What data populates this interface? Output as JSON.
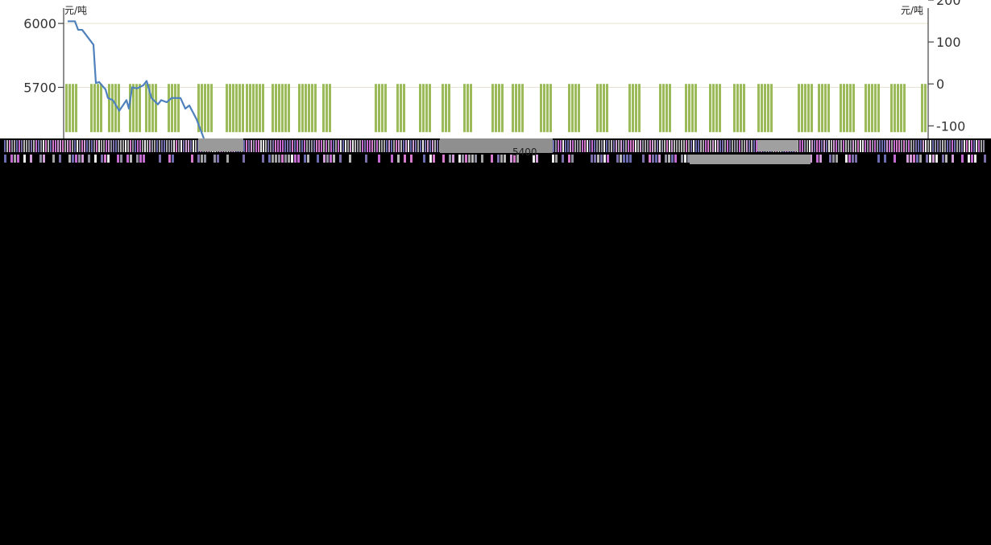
{
  "chart_data": {
    "type": "bar+line",
    "left_axis": {
      "unit": "元/吨",
      "ticks": [
        6000,
        5700
      ],
      "range": [
        5460,
        6110
      ]
    },
    "right_axis": {
      "unit": "元/吨",
      "ticks": [
        200,
        100,
        0,
        -100
      ],
      "range": [
        -130,
        200
      ]
    },
    "grid": true,
    "series": [
      {
        "kind": "bar",
        "axis": "right",
        "color": "#9bbb59",
        "segments": [
          [
            1,
            16
          ],
          [
            32,
            16
          ],
          [
            54,
            16
          ],
          [
            80,
            16
          ],
          [
            100,
            14
          ],
          [
            128,
            16
          ],
          [
            165,
            18
          ],
          [
            200,
            24
          ],
          [
            225,
            24
          ],
          [
            257,
            22
          ],
          [
            290,
            22
          ],
          [
            320,
            12
          ],
          [
            385,
            16
          ],
          [
            412,
            12
          ],
          [
            440,
            16
          ],
          [
            468,
            12
          ],
          [
            495,
            12
          ],
          [
            530,
            16
          ],
          [
            555,
            16
          ],
          [
            590,
            16
          ],
          [
            625,
            16
          ],
          [
            660,
            16
          ],
          [
            700,
            16
          ],
          [
            738,
            16
          ],
          [
            770,
            14
          ],
          [
            800,
            14
          ],
          [
            830,
            14
          ],
          [
            860,
            20
          ],
          [
            910,
            18
          ],
          [
            935,
            14
          ],
          [
            962,
            18
          ],
          [
            993,
            18
          ],
          [
            1025,
            18
          ],
          [
            1063,
            18
          ],
          [
            1093,
            18
          ],
          [
            1125,
            18
          ]
        ],
        "value_range": [
          -115,
          0
        ]
      },
      {
        "kind": "line",
        "axis": "left",
        "color": "#4f81bd",
        "points": [
          [
            4,
            6010
          ],
          [
            13,
            6010
          ],
          [
            17,
            5970
          ],
          [
            22,
            5970
          ],
          [
            36,
            5900
          ],
          [
            39,
            5720
          ],
          [
            43,
            5725
          ],
          [
            51,
            5690
          ],
          [
            54,
            5650
          ],
          [
            60,
            5640
          ],
          [
            68,
            5590
          ],
          [
            77,
            5640
          ],
          [
            80,
            5600
          ],
          [
            84,
            5700
          ],
          [
            90,
            5695
          ],
          [
            98,
            5710
          ],
          [
            102,
            5730
          ],
          [
            108,
            5650
          ],
          [
            116,
            5620
          ],
          [
            120,
            5640
          ],
          [
            127,
            5630
          ],
          [
            133,
            5650
          ],
          [
            144,
            5650
          ],
          [
            150,
            5600
          ],
          [
            155,
            5615
          ],
          [
            164,
            5550
          ],
          [
            173,
            5420
          ]
        ]
      }
    ]
  },
  "artifacts": {
    "strip_label": "5400"
  }
}
